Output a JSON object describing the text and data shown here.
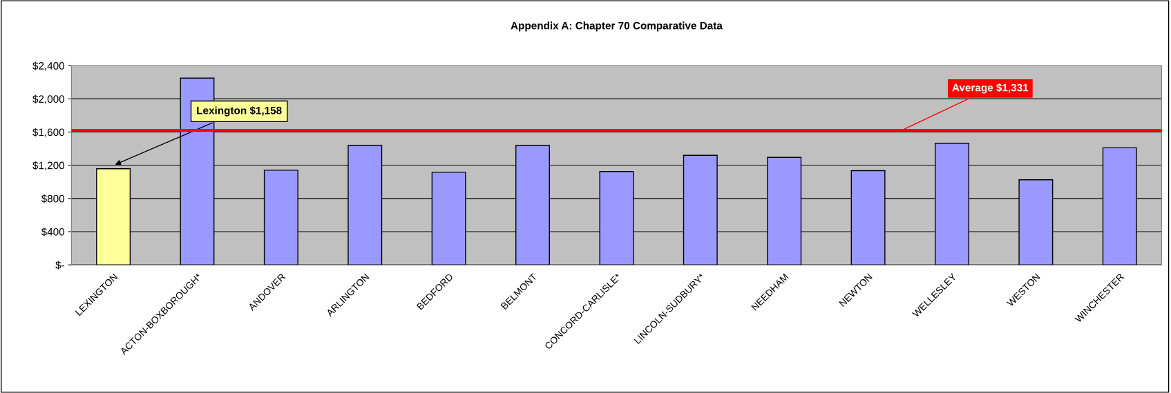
{
  "chart_data": {
    "type": "bar",
    "title": "Appendix A: Chapter 70 Comparative Data",
    "categories": [
      "LEXINGTON",
      "ACTON-BOXBOROUGH*",
      "ANDOVER",
      "ARLINGTON",
      "BEDFORD",
      "BELMONT",
      "CONCORD-CARLISLE*",
      "LINCOLN-SUDBURY*",
      "NEEDHAM",
      "NEWTON",
      "WELLESLEY",
      "WESTON",
      "WINCHESTER"
    ],
    "values": [
      1158,
      2250,
      1140,
      1440,
      1115,
      1440,
      1125,
      1320,
      1295,
      1135,
      1465,
      1025,
      1410
    ],
    "colors": [
      "#ffff99",
      "#9999ff",
      "#9999ff",
      "#9999ff",
      "#9999ff",
      "#9999ff",
      "#9999ff",
      "#9999ff",
      "#9999ff",
      "#9999ff",
      "#9999ff",
      "#9999ff",
      "#9999ff"
    ],
    "ylim": [
      0,
      2400
    ],
    "yticks": [
      {
        "value": 0,
        "label": "$-"
      },
      {
        "value": 400,
        "label": "$400"
      },
      {
        "value": 800,
        "label": "$800"
      },
      {
        "value": 1200,
        "label": "$1,200"
      },
      {
        "value": 1600,
        "label": "$1,600"
      },
      {
        "value": 2000,
        "label": "$2,000"
      },
      {
        "value": 2400,
        "label": "$2,400"
      }
    ],
    "grid": "y",
    "ref_lines": [
      {
        "axis": "y",
        "value": 1620,
        "label": "Average $1,331",
        "color": "#ff0000"
      }
    ],
    "annotations": [
      {
        "text": "Lexington $1,158",
        "x": "LEXINGTON",
        "y": 1158
      }
    ]
  }
}
